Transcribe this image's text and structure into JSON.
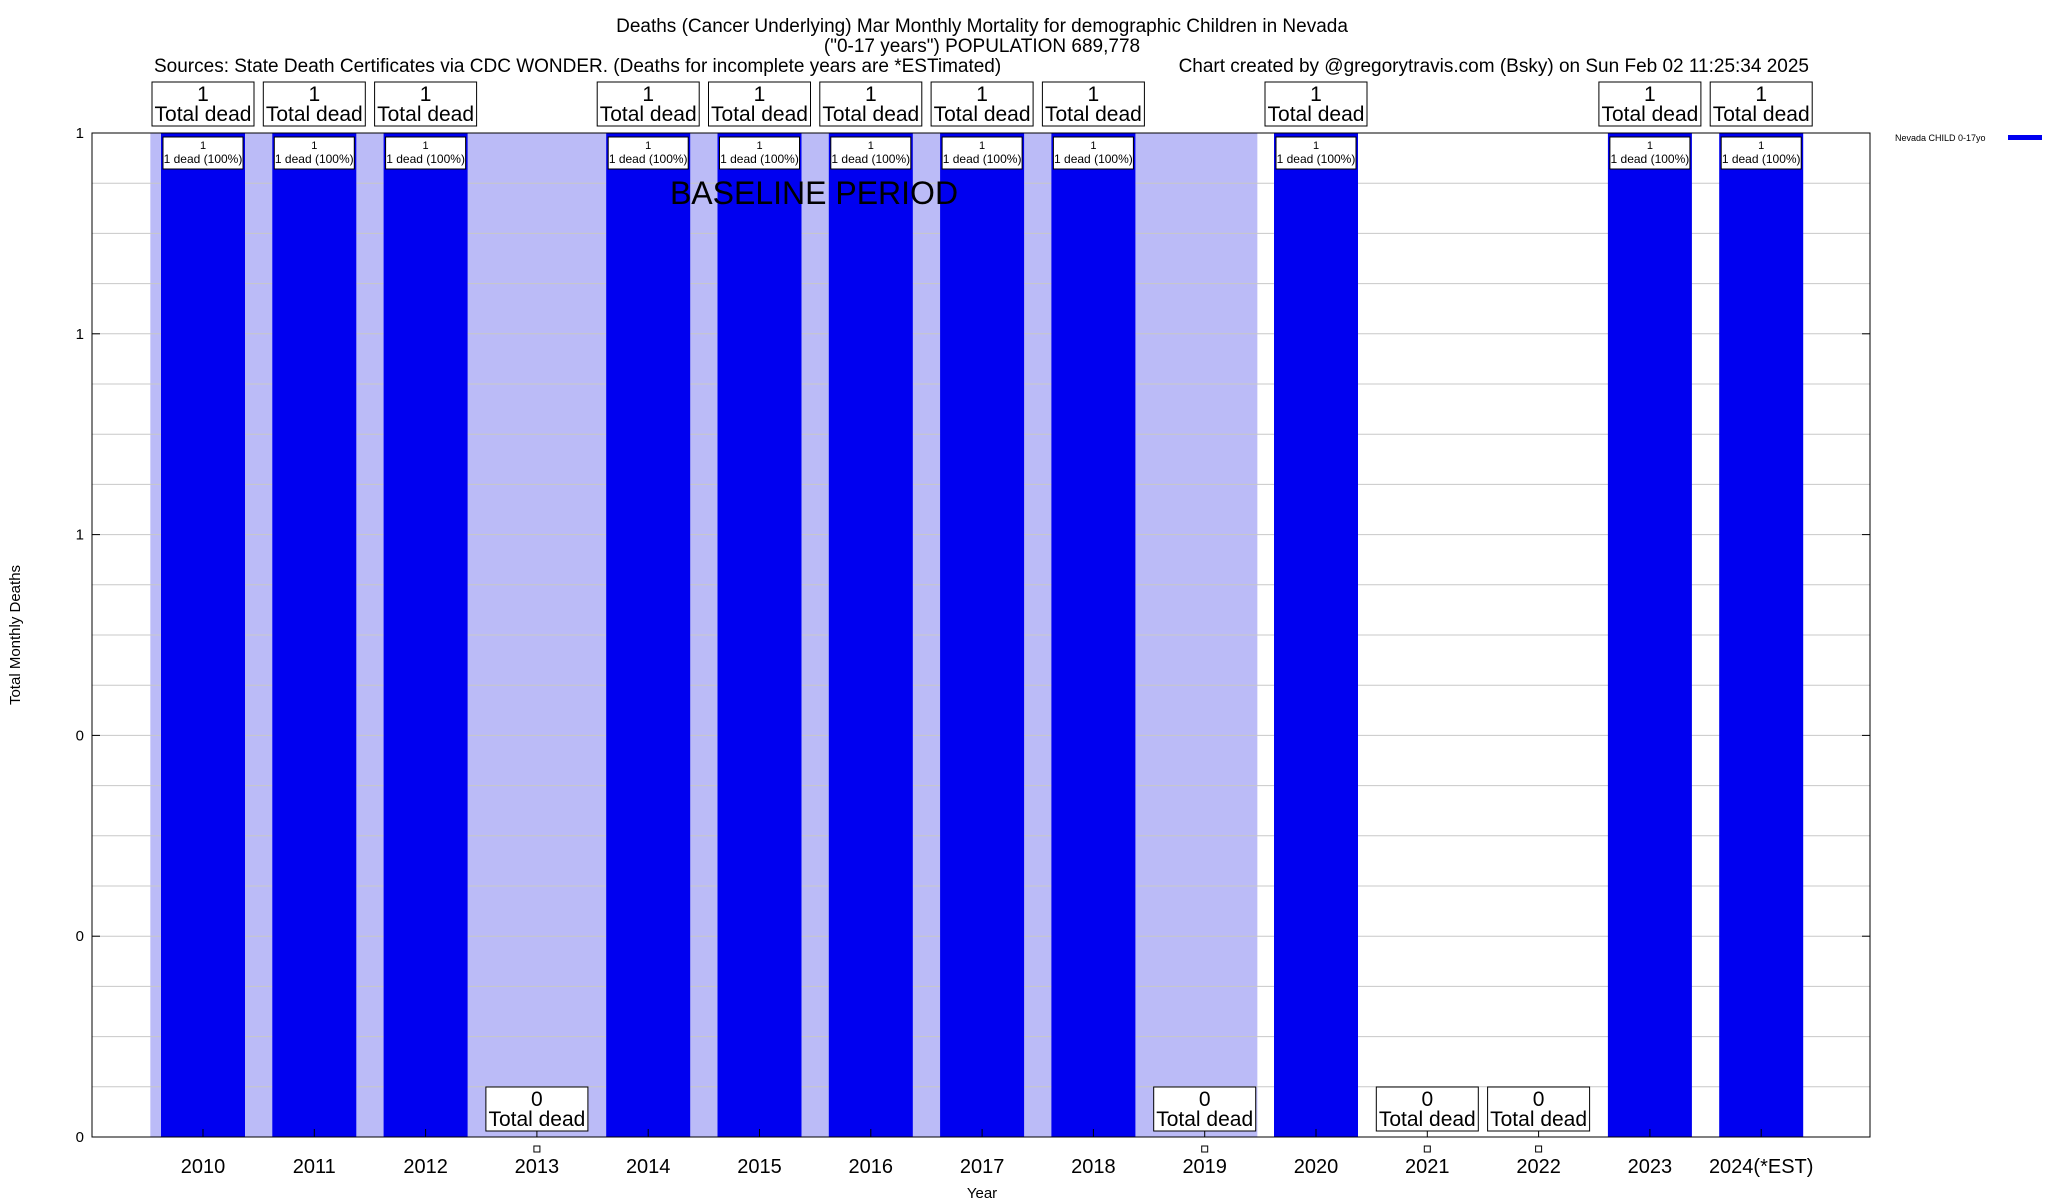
{
  "chart_data": {
    "type": "bar",
    "title_lines": [
      "Deaths (Cancer Underlying) Mar Monthly Mortality for demographic Children in Nevada",
      "(\"0-17 years\") POPULATION 689,778"
    ],
    "sources": "Sources: State Death Certificates via CDC WONDER. (Deaths for incomplete years are *ESTimated)",
    "credit": "Chart created by @gregorytravis.com (Bsky) on Sun Feb 02 11:25:34 2025",
    "xlabel": "Year",
    "ylabel": "Total Monthly Deaths",
    "categories": [
      "2010",
      "2011",
      "2012",
      "2013",
      "2014",
      "2015",
      "2016",
      "2017",
      "2018",
      "2019",
      "2020",
      "2021",
      "2022",
      "2023",
      "2024(*EST)"
    ],
    "series": [
      {
        "name": "Nevada CHILD 0-17yo",
        "color": "#0000f0",
        "values": [
          1,
          1,
          1,
          0,
          1,
          1,
          1,
          1,
          1,
          0,
          1,
          0,
          0,
          1,
          1
        ]
      }
    ],
    "ylim": [
      0,
      1
    ],
    "ytick_labels": [
      "0",
      "0",
      "0",
      "1",
      "1",
      "1"
    ],
    "total_label": "Total dead",
    "bar_label_suffix": "dead (100%)",
    "baseline": {
      "label": "BASELINE PERIOD",
      "from": "2010",
      "to": "2019",
      "color": "#bbbbf7"
    },
    "grid": true,
    "legend": {
      "position": "top-right"
    }
  }
}
